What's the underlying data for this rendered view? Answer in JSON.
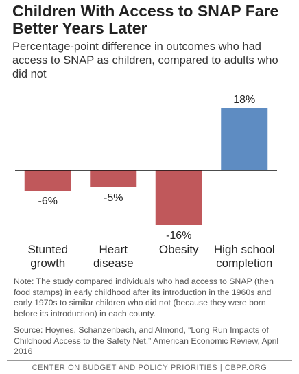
{
  "chart_data": {
    "type": "bar",
    "title": "Children With Access to SNAP Fare Better Years Later",
    "subtitle": "Percentage-point difference in outcomes who had access to SNAP as children, compared to adults who did not",
    "categories": [
      "Stunted growth",
      "Heart disease",
      "Obesity",
      "High school completion"
    ],
    "values": [
      -6,
      -5,
      -16,
      18
    ],
    "value_labels": [
      "-6%",
      "-5%",
      "-16%",
      "18%"
    ],
    "colors": [
      "#c0585b",
      "#c0585b",
      "#c0585b",
      "#5e8cc2"
    ],
    "note": "Note: The study compared individuals who had access to SNAP (then food stamps) in early childhood after its introduction in the 1960s and early 1970s to similar children who did not (because they were born before its introduction) in each county.",
    "source": "Source: Hoynes, Schanzenbach, and Almond, “Long Run Impacts of Childhood Access to the Safety Net,” American Economic Review, April 2016",
    "footer": "CENTER ON BUDGET AND POLICY PRIORITIES | CBPP.ORG"
  }
}
